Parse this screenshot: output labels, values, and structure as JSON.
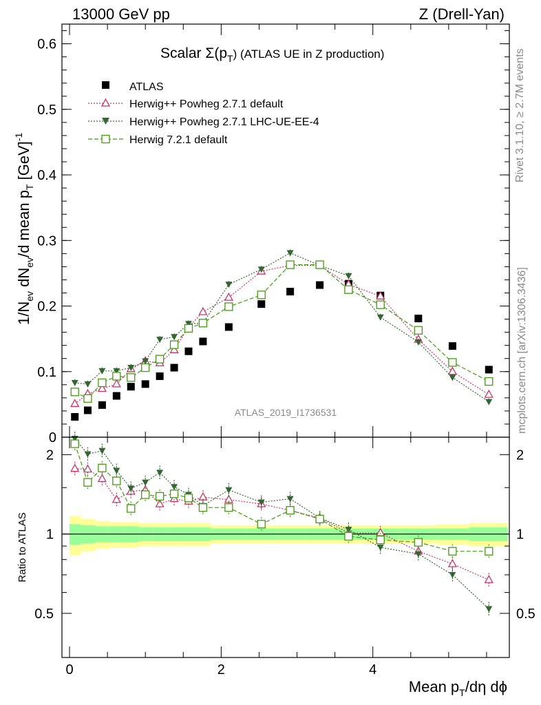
{
  "header": {
    "left": "13000 GeV pp",
    "right": "Z (Drell-Yan)"
  },
  "side_text": {
    "rivet": "Rivet 3.1.10, ≥ 2.7M events",
    "mcplots": "mcplots.cern.ch [arXiv:1306.3436]"
  },
  "watermark": "ATLAS_2019_I1736531",
  "colors": {
    "atlas": "#000000",
    "pw_default": "#cc3366",
    "pw_lhc": "#336633",
    "h7": "#449911",
    "band_inner": "#99ff99",
    "band_outer": "#ffff99"
  },
  "chart_data": [
    {
      "type": "scatter",
      "panel": "main",
      "title_main": "Scalar Σ(p",
      "title_sub": "T",
      "title_tail": ") (ATLAS UE in Z production)",
      "ylabel": "1/N_ev dN_ev/d mean p_T [GeV]^-1",
      "ylim": [
        0,
        0.63
      ],
      "yticks": [
        0,
        0.1,
        0.2,
        0.3,
        0.4,
        0.5,
        0.6
      ],
      "ytick_labels": [
        "0",
        "0.1",
        "0.2",
        "0.3",
        "0.4",
        "0.5",
        "0.6"
      ],
      "legend": [
        "ATLAS",
        "Herwig++ Powheg 2.7.1 default",
        "Herwig++ Powheg 2.7.1 LHC-UE-EE-4",
        "Herwig 7.2.1 default"
      ],
      "x": [
        0.07,
        0.24,
        0.43,
        0.62,
        0.81,
        1.0,
        1.19,
        1.38,
        1.57,
        1.76,
        2.1,
        2.53,
        2.91,
        3.3,
        3.68,
        4.1,
        4.6,
        5.05,
        5.53
      ],
      "x_low": [
        0.0,
        0.15,
        0.34,
        0.53,
        0.72,
        0.91,
        1.1,
        1.29,
        1.48,
        1.67,
        1.86,
        2.35,
        2.72,
        3.11,
        3.49,
        3.87,
        4.35,
        4.85,
        5.27
      ],
      "x_high": [
        0.15,
        0.34,
        0.53,
        0.72,
        0.91,
        1.1,
        1.29,
        1.48,
        1.67,
        1.86,
        2.35,
        2.72,
        3.11,
        3.49,
        3.87,
        4.35,
        4.85,
        5.27,
        5.78
      ],
      "series": [
        {
          "name": "ATLAS",
          "marker": "square",
          "values": [
            0.031,
            0.041,
            0.049,
            0.063,
            0.077,
            0.081,
            0.093,
            0.106,
            0.131,
            0.146,
            0.168,
            0.203,
            0.222,
            0.232,
            0.234,
            0.216,
            0.181,
            0.139,
            0.103
          ]
        },
        {
          "name": "Herwig++ Powheg 2.7.1 default",
          "marker": "triangle-up",
          "values": [
            0.051,
            0.066,
            0.074,
            0.081,
            0.104,
            0.116,
            0.113,
            0.133,
            0.168,
            0.191,
            0.213,
            0.253,
            0.262,
            0.262,
            0.233,
            0.215,
            0.149,
            0.1,
            0.065
          ]
        },
        {
          "name": "Herwig++ Powheg 2.7.1 LHC-UE-EE-4",
          "marker": "triangle-down",
          "values": [
            0.083,
            0.081,
            0.101,
            0.101,
            0.106,
            0.116,
            0.149,
            0.153,
            0.173,
            0.174,
            0.233,
            0.256,
            0.281,
            0.262,
            0.246,
            0.183,
            0.145,
            0.091,
            0.054
          ]
        },
        {
          "name": "Herwig 7.2.1 default",
          "marker": "square-open",
          "values": [
            0.069,
            0.059,
            0.083,
            0.093,
            0.091,
            0.106,
            0.119,
            0.141,
            0.166,
            0.174,
            0.199,
            0.217,
            0.263,
            0.263,
            0.225,
            0.202,
            0.163,
            0.114,
            0.085
          ]
        }
      ]
    },
    {
      "type": "scatter",
      "panel": "ratio",
      "ylabel": "Ratio to ATLAS",
      "xlabel": "Mean p_T/dη dφ",
      "xlim": [
        -0.1,
        5.8
      ],
      "xticks": [
        0,
        2,
        4
      ],
      "xtick_labels": [
        "0",
        "2",
        "4"
      ],
      "ylim": [
        0.34,
        2.33
      ],
      "yticks": [
        0.5,
        1,
        2
      ],
      "ytick_labels": [
        "0.5",
        "1",
        "2"
      ],
      "band_inner": [
        0.09,
        0.08,
        0.07,
        0.07,
        0.07,
        0.06,
        0.06,
        0.06,
        0.06,
        0.06,
        0.05,
        0.05,
        0.05,
        0.05,
        0.05,
        0.05,
        0.05,
        0.05,
        0.06
      ],
      "band_outer": [
        0.17,
        0.14,
        0.12,
        0.11,
        0.11,
        0.1,
        0.1,
        0.1,
        0.1,
        0.1,
        0.08,
        0.08,
        0.08,
        0.08,
        0.08,
        0.08,
        0.08,
        0.09,
        0.1
      ],
      "series": [
        {
          "name": "Herwig++ Powheg 2.7.1 default",
          "values": [
            1.77,
            1.76,
            1.62,
            1.35,
            1.45,
            1.47,
            1.3,
            1.36,
            1.33,
            1.38,
            1.35,
            1.3,
            1.23,
            1.15,
            1.01,
            1.01,
            0.86,
            0.77,
            0.67
          ]
        },
        {
          "name": "Herwig++ Powheg 2.7.1 LHC-UE-EE-4",
          "values": [
            2.33,
            2.01,
            2.07,
            1.74,
            1.49,
            1.57,
            1.71,
            1.51,
            1.41,
            1.28,
            1.47,
            1.32,
            1.36,
            1.15,
            1.04,
            0.89,
            0.84,
            0.7,
            0.52
          ]
        },
        {
          "name": "Herwig 7.2.1 default",
          "values": [
            2.2,
            1.57,
            1.78,
            1.59,
            1.25,
            1.41,
            1.39,
            1.42,
            1.37,
            1.26,
            1.26,
            1.09,
            1.23,
            1.14,
            0.98,
            0.95,
            0.93,
            0.86,
            0.86
          ]
        }
      ]
    }
  ]
}
